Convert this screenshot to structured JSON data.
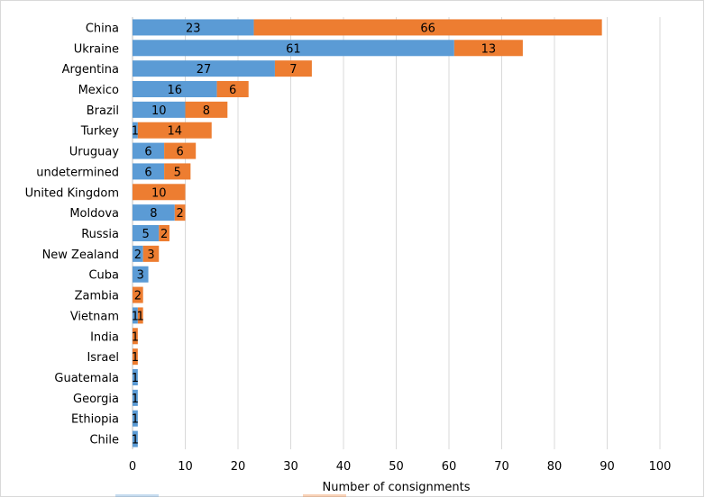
{
  "chart_data": {
    "type": "bar",
    "orientation": "horizontal",
    "stacked": true,
    "categories": [
      "China",
      "Ukraine",
      "Argentina",
      "Mexico",
      "Brazil",
      "Turkey",
      "Uruguay",
      "undetermined",
      "United Kingdom",
      "Moldova",
      "Russia",
      "New Zealand",
      "Cuba",
      "Zambia",
      "Vietnam",
      "India",
      "Israel",
      "Guatemala",
      "Georgia",
      "Ethiopia",
      "Chile"
    ],
    "series": [
      {
        "color": "#5b9bd5",
        "values": [
          23,
          61,
          27,
          16,
          10,
          1,
          6,
          6,
          0,
          8,
          5,
          2,
          3,
          0,
          1,
          0,
          0,
          1,
          1,
          1,
          1
        ]
      },
      {
        "color": "#ed7d31",
        "values": [
          66,
          13,
          7,
          6,
          8,
          14,
          6,
          5,
          10,
          2,
          2,
          3,
          0,
          2,
          1,
          1,
          1,
          0,
          0,
          0,
          0
        ]
      }
    ],
    "title": "",
    "xlabel": "Number of consignments",
    "ylabel": "",
    "xlim": [
      0,
      100
    ],
    "xticks": [
      0,
      10,
      20,
      30,
      40,
      50,
      60,
      70,
      80,
      90,
      100
    ],
    "grid": "vertical",
    "legend": "bottom"
  }
}
